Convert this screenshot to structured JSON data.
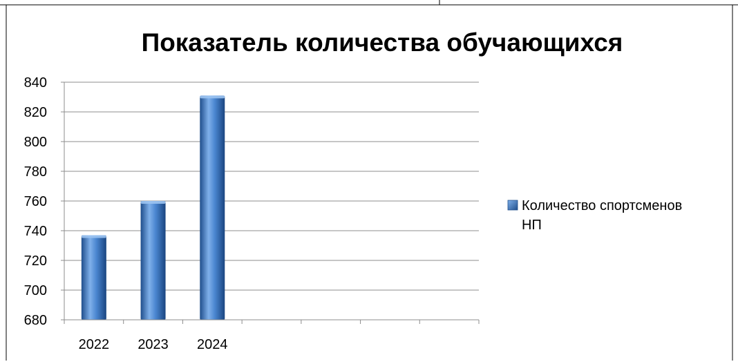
{
  "chart_data": {
    "type": "bar",
    "title": "Показатель количества обучающихся",
    "categories": [
      "2022",
      "2023",
      "2024",
      "",
      "",
      "",
      ""
    ],
    "series": [
      {
        "name": "Количество спортсменов НП",
        "values": [
          737,
          760,
          831,
          null,
          null,
          null,
          null
        ]
      }
    ],
    "ylim": [
      680,
      840
    ],
    "yticks": [
      680,
      700,
      720,
      740,
      760,
      780,
      800,
      820,
      840
    ],
    "grid": true,
    "legend_position": "right",
    "legend_lines": [
      "Количество спортсменов",
      "НП"
    ],
    "colors": {
      "bar_dark": "#1f4e8c",
      "bar_mid": "#4a86d0",
      "bar_light": "#7fb0ea",
      "grid": "#8c8c8c"
    }
  }
}
